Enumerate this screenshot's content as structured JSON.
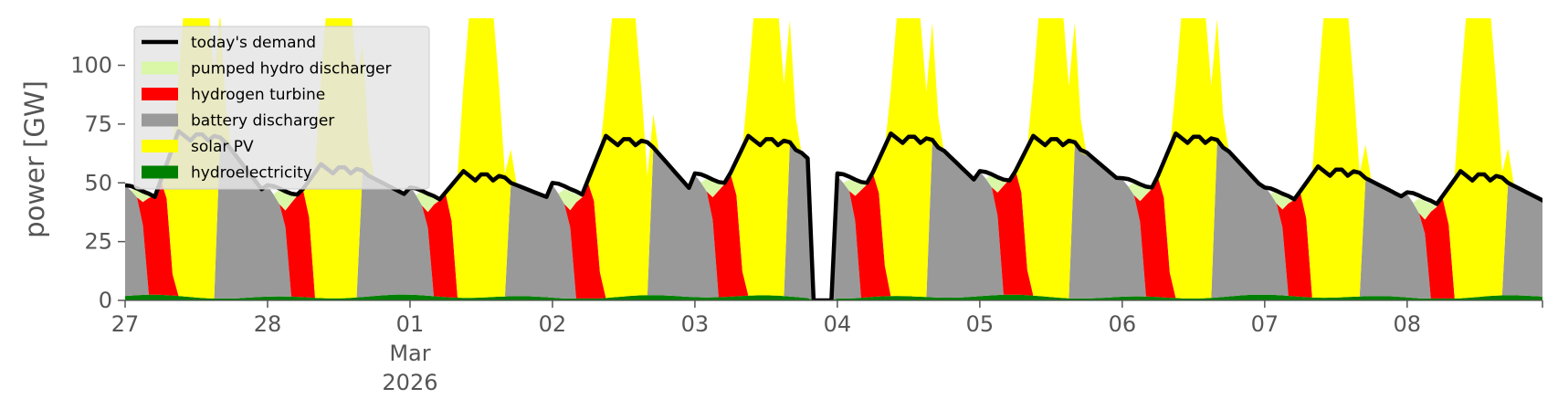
{
  "chart_data": {
    "type": "area",
    "title": "",
    "xlabel": "",
    "ylabel": "power [GW]",
    "ylim": [
      0,
      120
    ],
    "yticks": [
      0,
      25,
      50,
      75,
      100
    ],
    "x_range_days": [
      0,
      9.95
    ],
    "x_ticks": [
      {
        "day": 0,
        "label": "27"
      },
      {
        "day": 1,
        "label": "28"
      },
      {
        "day": 2,
        "label": "01",
        "sub1": "Mar",
        "sub2": "2026"
      },
      {
        "day": 3,
        "label": "02"
      },
      {
        "day": 4,
        "label": "03"
      },
      {
        "day": 5,
        "label": "04"
      },
      {
        "day": 6,
        "label": "05"
      },
      {
        "day": 7,
        "label": "06"
      },
      {
        "day": 8,
        "label": "07"
      },
      {
        "day": 9,
        "label": "08"
      }
    ],
    "legend": {
      "position": "upper-left",
      "entries": [
        {
          "label": "today's demand",
          "kind": "line",
          "color": "#000000"
        },
        {
          "label": "pumped hydro discharger",
          "kind": "patch",
          "color": "#d9f7a6"
        },
        {
          "label": "hydrogen turbine",
          "kind": "patch",
          "color": "#ff0000"
        },
        {
          "label": "battery discharger",
          "kind": "patch",
          "color": "#999999"
        },
        {
          "label": "solar PV",
          "kind": "patch",
          "color": "#ffff00"
        },
        {
          "label": "hydroelectricity",
          "kind": "patch",
          "color": "#008000"
        }
      ]
    },
    "stack_order": [
      "hydroelectricity",
      "battery discharger",
      "hydrogen turbine",
      "pumped hydro discharger",
      "solar PV"
    ],
    "colors": {
      "hydroelectricity": "#008000",
      "battery discharger": "#999999",
      "hydrogen turbine": "#ff0000",
      "pumped hydro discharger": "#d9f7a6",
      "solar PV": "#ffff00",
      "demand": "#000000"
    },
    "day_params": [
      {
        "peak": 72,
        "trough": 44,
        "pumped": 5,
        "solar": 155,
        "dip_low": 42,
        "dip_high": 48
      },
      {
        "peak": 58,
        "trough": 44,
        "pumped": 8,
        "solar": 155,
        "dip_low": 38,
        "dip_high": 46
      },
      {
        "peak": 55,
        "trough": 43,
        "pumped": 8,
        "solar": 150,
        "dip_low": 38,
        "dip_high": 45
      },
      {
        "peak": 70,
        "trough": 45,
        "pumped": 8,
        "solar": 145,
        "dip_low": 40,
        "dip_high": 47
      },
      {
        "peak": 70,
        "trough": 49,
        "pumped": 7,
        "solar": 150,
        "dip_low": 43,
        "dip_high": 50
      },
      {
        "peak": 71,
        "trough": 49,
        "pumped": 6,
        "solar": 145,
        "dip_low": 44,
        "dip_high": 51
      },
      {
        "peak": 70,
        "trough": 50,
        "pumped": 7,
        "solar": 150,
        "dip_low": 42,
        "dip_high": 49
      },
      {
        "peak": 71,
        "trough": 47,
        "pumped": 7,
        "solar": 150,
        "dip_low": 41,
        "dip_high": 48
      },
      {
        "peak": 57,
        "trough": 43,
        "pumped": 7,
        "solar": 150,
        "dip_low": 36,
        "dip_high": 43
      },
      {
        "peak": 55,
        "trough": 41,
        "pumped": 8,
        "solar": 150,
        "dip_low": 34,
        "dip_high": 41
      }
    ],
    "outage_days": [
      4.82,
      4.97
    ]
  }
}
